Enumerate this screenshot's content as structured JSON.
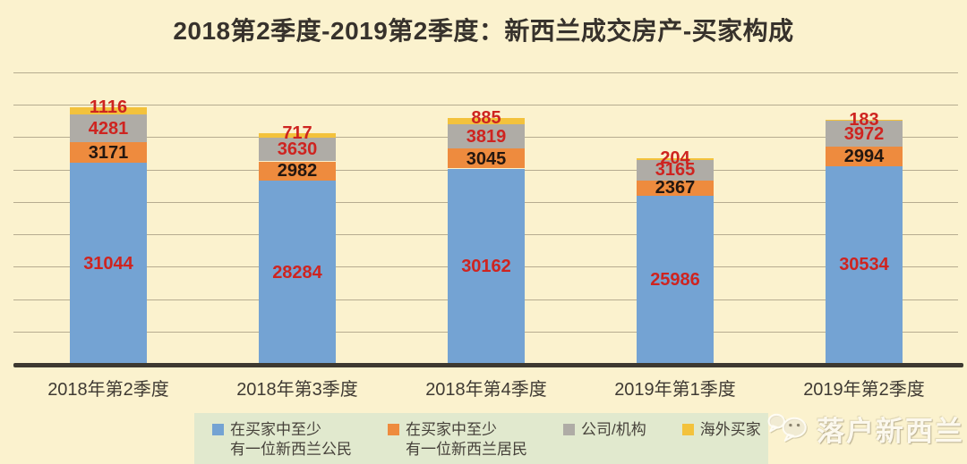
{
  "chart_data": {
    "type": "bar",
    "stacked": true,
    "title": "2018第2季度-2019第2季度：新西兰成交房产-买家构成",
    "categories": [
      "2018年第2季度",
      "2018年第3季度",
      "2018年第4季度",
      "2019年第1季度",
      "2019年第2季度"
    ],
    "series": [
      {
        "name": "在买家中至少有一位新西兰公民",
        "color": "#74A3D3",
        "label_color": "#CE2420",
        "values": [
          31044,
          28284,
          30162,
          25986,
          30534
        ]
      },
      {
        "name": "在买家中至少有一位新西兰居民",
        "color": "#EE8B3E",
        "label_color": "#241710",
        "values": [
          3171,
          2982,
          3045,
          2367,
          2994
        ]
      },
      {
        "name": "公司/机构",
        "color": "#AFACA6",
        "label_color": "#CE2420",
        "values": [
          4281,
          3630,
          3819,
          3165,
          3972
        ]
      },
      {
        "name": "海外买家",
        "color": "#F3C23C",
        "label_color": "#CE2420",
        "values": [
          1116,
          717,
          885,
          204,
          183
        ]
      }
    ],
    "xlabel": "",
    "ylabel": "",
    "ylim": [
      0,
      45000
    ],
    "gridline_step": 5000,
    "grid": true,
    "legend_position": "bottom"
  },
  "legend": {
    "background": "#E1E9CE",
    "items": [
      {
        "line1": "在买家中至少",
        "line2": "有一位新西兰公民",
        "color": "#74A3D3"
      },
      {
        "line1": "在买家中至少",
        "line2": "有一位新西兰居民",
        "color": "#EE8B3E"
      },
      {
        "line1": "公司/机构",
        "line2": "",
        "color": "#AFACA6"
      },
      {
        "line1": "海外买家",
        "line2": "",
        "color": "#F3C23C"
      }
    ]
  },
  "watermark": {
    "text": "落户新西兰",
    "icon": "wechat-icon"
  },
  "colors": {
    "background": "#FBF2CE",
    "axis_line": "#3D3930",
    "gridline": "#7D735C",
    "title_text": "#37322C",
    "value_red": "#CE2420",
    "value_dark": "#241710"
  }
}
